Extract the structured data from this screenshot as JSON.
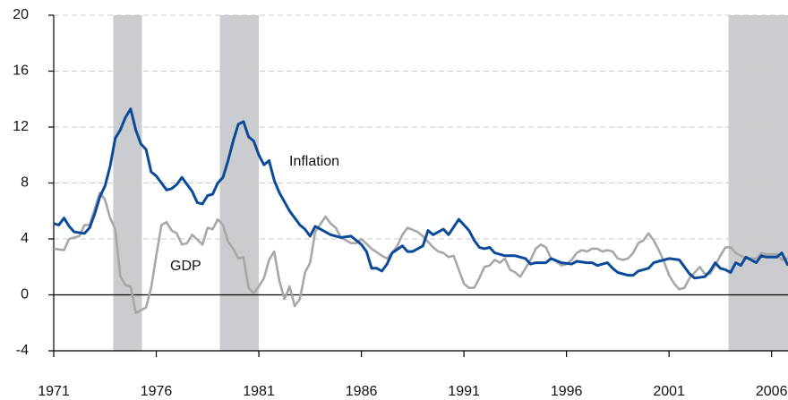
{
  "chart_data": {
    "type": "line",
    "xlim": [
      1971,
      2006.8
    ],
    "xticks": [
      1971,
      1976,
      1981,
      1986,
      1991,
      1996,
      2001,
      2006
    ],
    "ylim": [
      -4,
      20
    ],
    "yticks": [
      -4,
      0,
      4,
      8,
      12,
      16,
      20
    ],
    "grid": true,
    "shaded_regions": [
      [
        1973.9,
        1975.3
      ],
      [
        1979.1,
        1981.0
      ],
      [
        2003.9,
        2006.8
      ]
    ],
    "shade_color": "#cbcccf",
    "series": [
      {
        "name": "Inflation",
        "color": "#0b4a98",
        "x": [
          1971.0,
          1971.25,
          1971.5,
          1971.75,
          1972.0,
          1972.5,
          1972.75,
          1973.0,
          1973.25,
          1973.5,
          1973.75,
          1974.0,
          1974.25,
          1974.5,
          1974.75,
          1975.0,
          1975.25,
          1975.5,
          1975.75,
          1976.0,
          1976.25,
          1976.5,
          1976.75,
          1977.0,
          1977.25,
          1977.5,
          1977.75,
          1978.0,
          1978.25,
          1978.5,
          1978.75,
          1979.0,
          1979.25,
          1979.5,
          1979.75,
          1980.0,
          1980.25,
          1980.5,
          1980.75,
          1981.0,
          1981.25,
          1981.5,
          1981.75,
          1982.0,
          1982.5,
          1983.0,
          1983.25,
          1983.5,
          1983.75,
          1984.0,
          1984.5,
          1985.0,
          1985.5,
          1986.0,
          1986.25,
          1986.5,
          1986.75,
          1987.0,
          1987.25,
          1987.5,
          1988.0,
          1988.25,
          1988.5,
          1989.0,
          1989.25,
          1989.5,
          1990.0,
          1990.25,
          1990.75,
          1991.0,
          1991.25,
          1991.5,
          1991.75,
          1992.0,
          1992.25,
          1992.5,
          1993.0,
          1993.5,
          1994.0,
          1994.25,
          1994.5,
          1995.0,
          1995.25,
          1995.75,
          1996.25,
          1996.5,
          1997.0,
          1997.25,
          1997.5,
          1998.0,
          1998.25,
          1998.5,
          1999.0,
          1999.25,
          1999.5,
          2000.0,
          2000.25,
          2000.5,
          2001.0,
          2001.5,
          2002.0,
          2002.25,
          2002.75,
          2003.0,
          2003.25,
          2003.5,
          2003.75,
          2004.0,
          2004.25,
          2004.5,
          2004.75,
          2005.25,
          2005.5,
          2005.75,
          2006.25,
          2006.5,
          2006.8
        ],
        "values": [
          5.1,
          5.0,
          5.5,
          4.9,
          4.5,
          4.4,
          4.8,
          5.8,
          7.0,
          7.8,
          9.2,
          11.2,
          11.8,
          12.7,
          13.3,
          11.8,
          10.8,
          10.4,
          8.8,
          8.5,
          8.0,
          7.5,
          7.6,
          7.9,
          8.4,
          7.9,
          7.4,
          6.6,
          6.5,
          7.1,
          7.2,
          8.0,
          8.4,
          9.6,
          11.0,
          12.2,
          12.4,
          11.3,
          11.0,
          10.0,
          9.3,
          9.6,
          8.2,
          7.3,
          6.0,
          5.0,
          4.7,
          4.2,
          4.9,
          4.7,
          4.3,
          4.1,
          4.2,
          3.6,
          3.1,
          1.9,
          1.9,
          1.7,
          2.2,
          3.0,
          3.5,
          3.1,
          3.1,
          3.5,
          4.6,
          4.3,
          4.7,
          4.3,
          5.4,
          5.0,
          4.6,
          3.9,
          3.4,
          3.3,
          3.4,
          3.0,
          2.8,
          2.8,
          2.6,
          2.2,
          2.3,
          2.3,
          2.6,
          2.3,
          2.2,
          2.4,
          2.3,
          2.3,
          2.1,
          2.3,
          1.9,
          1.6,
          1.4,
          1.4,
          1.7,
          1.9,
          2.3,
          2.4,
          2.6,
          2.5,
          1.5,
          1.2,
          1.3,
          1.7,
          2.3,
          1.9,
          1.8,
          1.6,
          2.3,
          2.1,
          2.7,
          2.3,
          2.8,
          2.7,
          2.7,
          3.0,
          2.1
        ]
      },
      {
        "name": "GDP",
        "color": "#a8a8a8",
        "x": [
          1971.0,
          1971.5,
          1971.75,
          1972.25,
          1972.5,
          1972.75,
          1973.25,
          1973.5,
          1973.75,
          1974.0,
          1974.25,
          1974.5,
          1974.75,
          1975.0,
          1975.25,
          1975.5,
          1975.75,
          1976.0,
          1976.25,
          1976.5,
          1976.75,
          1977.0,
          1977.25,
          1977.5,
          1977.75,
          1978.25,
          1978.5,
          1978.75,
          1979.0,
          1979.25,
          1979.5,
          1979.75,
          1980.0,
          1980.25,
          1980.5,
          1980.75,
          1981.0,
          1981.25,
          1981.5,
          1981.75,
          1982.0,
          1982.25,
          1982.5,
          1982.75,
          1983.0,
          1983.25,
          1983.5,
          1983.75,
          1984.25,
          1984.5,
          1984.75,
          1985.0,
          1985.5,
          1985.75,
          1986.0,
          1986.5,
          1987.0,
          1987.25,
          1987.5,
          1987.75,
          1988.0,
          1988.25,
          1988.75,
          1989.0,
          1989.25,
          1989.5,
          1989.75,
          1990.0,
          1990.25,
          1990.5,
          1990.75,
          1991.0,
          1991.25,
          1991.5,
          1991.75,
          1992.0,
          1992.25,
          1992.5,
          1992.75,
          1993.0,
          1993.25,
          1993.5,
          1993.75,
          1994.0,
          1994.25,
          1994.5,
          1994.75,
          1995.0,
          1995.25,
          1995.5,
          1995.75,
          1996.0,
          1996.25,
          1996.5,
          1996.75,
          1997.0,
          1997.25,
          1997.5,
          1997.75,
          1998.0,
          1998.25,
          1998.5,
          1998.75,
          1999.0,
          1999.25,
          1999.5,
          1999.75,
          2000.0,
          2000.25,
          2000.5,
          2000.75,
          2001.0,
          2001.25,
          2001.5,
          2001.75,
          2002.0,
          2002.25,
          2002.5,
          2002.75,
          2003.0,
          2003.25,
          2003.5,
          2003.75,
          2004.0,
          2004.25,
          2004.5,
          2004.75,
          2005.25,
          2005.5,
          2005.75,
          2006.25,
          2006.5,
          2006.8
        ],
        "values": [
          3.3,
          3.2,
          4.0,
          4.2,
          5.0,
          5.0,
          7.3,
          6.8,
          5.5,
          4.7,
          1.3,
          0.7,
          0.6,
          -1.3,
          -1.1,
          -0.9,
          0.5,
          2.8,
          5.0,
          5.2,
          4.6,
          4.4,
          3.6,
          3.7,
          4.3,
          3.6,
          4.8,
          4.7,
          5.4,
          5.0,
          3.8,
          3.3,
          2.6,
          2.7,
          0.5,
          0.1,
          0.6,
          1.2,
          2.5,
          3.1,
          1.0,
          -0.3,
          0.6,
          -0.8,
          -0.3,
          1.6,
          2.3,
          4.5,
          5.6,
          5.1,
          4.8,
          4.1,
          3.7,
          3.7,
          4.0,
          3.3,
          2.8,
          2.6,
          3.0,
          3.5,
          4.3,
          4.8,
          4.5,
          4.2,
          3.8,
          3.4,
          3.1,
          3.0,
          2.7,
          2.8,
          1.8,
          0.8,
          0.5,
          0.5,
          1.2,
          2.0,
          2.1,
          2.5,
          2.3,
          2.6,
          1.8,
          1.6,
          1.3,
          1.9,
          2.5,
          3.3,
          3.6,
          3.4,
          2.6,
          2.4,
          2.1,
          2.2,
          2.5,
          3.0,
          3.2,
          3.1,
          3.3,
          3.3,
          3.1,
          3.2,
          3.1,
          2.6,
          2.5,
          2.6,
          3.0,
          3.7,
          3.9,
          4.4,
          3.9,
          3.2,
          2.4,
          1.4,
          0.8,
          0.4,
          0.5,
          1.2,
          1.6,
          2.0,
          1.5,
          1.5,
          2.1,
          2.8,
          3.4,
          3.4,
          3.0,
          2.8,
          2.6,
          2.6,
          3.0,
          2.9,
          2.9,
          2.5,
          2.6
        ]
      }
    ]
  }
}
